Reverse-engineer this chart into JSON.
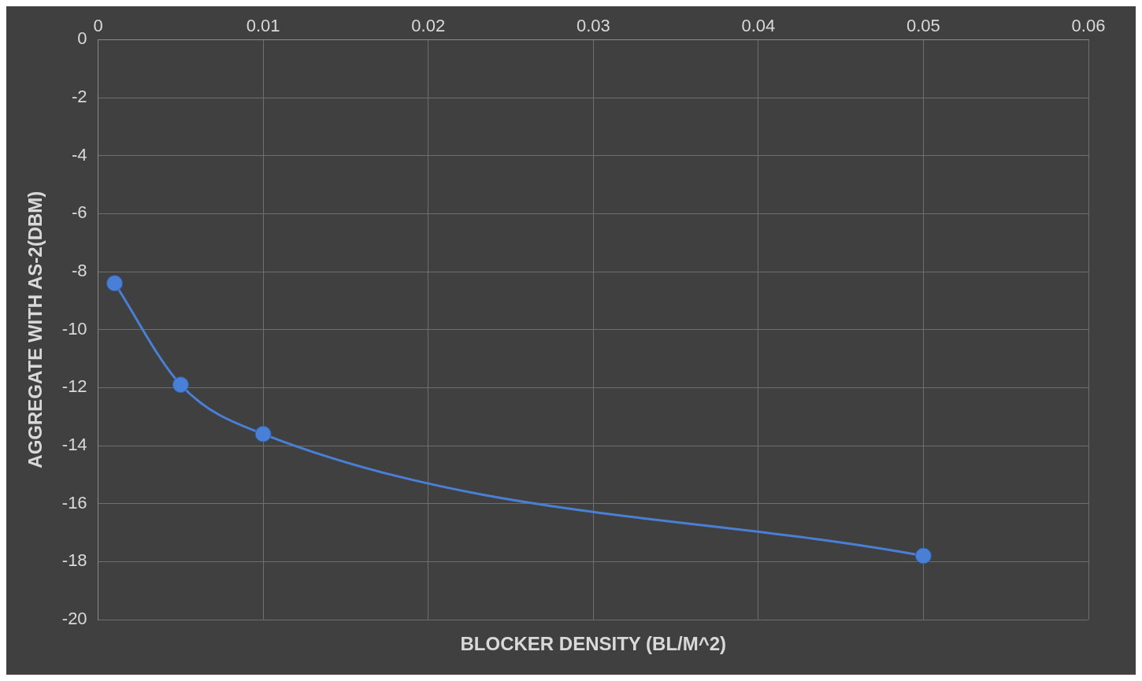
{
  "chart_data": {
    "type": "line",
    "xlabel": "BLOCKER DENSITY (BL/M^2)",
    "ylabel": "AGGREGATE WITH AS-2(DBM)",
    "x": [
      0.001,
      0.005,
      0.01,
      0.05
    ],
    "series": [
      {
        "color": "#4a7fd6",
        "values": [
          -8.4,
          -11.9,
          -13.6,
          -17.8
        ]
      }
    ],
    "xlim": [
      0,
      0.06
    ],
    "xticks": [
      0,
      0.01,
      0.02,
      0.03,
      0.04,
      0.05,
      0.06
    ],
    "ylim": [
      -20,
      0
    ],
    "yticks": [
      0,
      -2,
      -4,
      -6,
      -8,
      -10,
      -12,
      -14,
      -16,
      -18,
      -20
    ],
    "grid": true,
    "marker": "circle",
    "line_style": "solid"
  }
}
